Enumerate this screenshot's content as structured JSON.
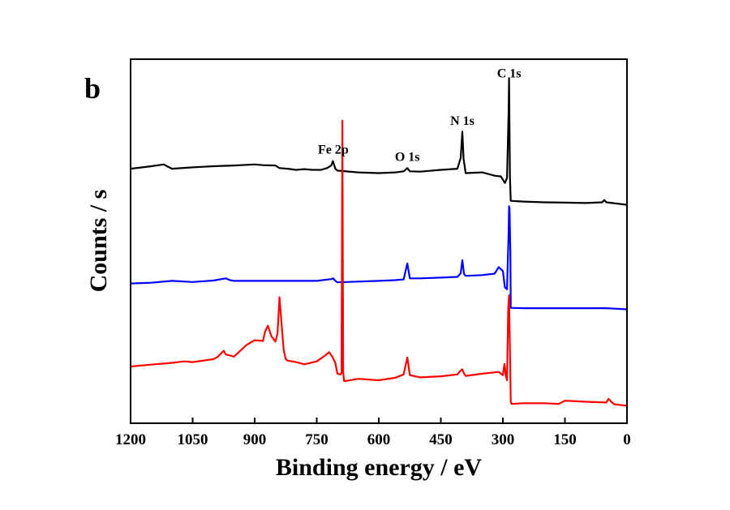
{
  "panel_label": "b",
  "chart_data": {
    "type": "line",
    "xlabel": "Binding energy / eV",
    "ylabel": "Counts / s",
    "xlim": [
      1200,
      0
    ],
    "ylim": [
      0,
      100
    ],
    "x_reversed": true,
    "y_ticks_shown": false,
    "grid": false,
    "x_ticks": [
      1200,
      1050,
      900,
      750,
      600,
      450,
      300,
      150,
      0
    ],
    "x_tick_labels": [
      "1200",
      "1050",
      "900",
      "750",
      "600",
      "450",
      "300",
      "150",
      "0"
    ],
    "annotations": [
      {
        "text": "C 1s",
        "x": 285,
        "y": 95
      },
      {
        "text": "N 1s",
        "x": 398,
        "y": 82
      },
      {
        "text": "O 1s",
        "x": 531,
        "y": 72
      },
      {
        "text": "Fe 2p",
        "x": 710,
        "y": 74
      }
    ],
    "series": [
      {
        "color": "#000000",
        "x": [
          1200,
          1150,
          1120,
          1110,
          1100,
          1050,
          1000,
          950,
          900,
          880,
          850,
          840,
          820,
          800,
          780,
          760,
          740,
          725,
          715,
          711,
          705,
          700,
          650,
          600,
          560,
          540,
          531,
          525,
          500,
          450,
          410,
          402,
          398,
          395,
          390,
          350,
          320,
          305,
          295,
          290,
          286,
          285,
          283,
          281,
          250,
          200,
          150,
          100,
          60,
          55,
          50,
          0
        ],
        "y": [
          69.9,
          70.6,
          71.1,
          70.5,
          69.9,
          70.3,
          70.6,
          70.8,
          71.1,
          70.9,
          70.8,
          70.1,
          69.9,
          69.6,
          69.8,
          69.6,
          69.6,
          70.1,
          70.8,
          72.0,
          69.9,
          69.4,
          68.9,
          68.7,
          68.9,
          69.2,
          70.1,
          69.2,
          69.1,
          69.6,
          69.9,
          72.9,
          80.1,
          72.7,
          68.7,
          68.9,
          68.0,
          67.8,
          66.0,
          67.4,
          86.0,
          94.8,
          67.6,
          61.1,
          60.9,
          60.7,
          60.6,
          60.5,
          60.7,
          61.3,
          60.7,
          60.0
        ]
      },
      {
        "color": "#0000ff",
        "x": [
          1200,
          1150,
          1100,
          1050,
          1000,
          970,
          960,
          950,
          900,
          850,
          800,
          750,
          715,
          710,
          705,
          700,
          650,
          600,
          560,
          540,
          531,
          525,
          500,
          450,
          410,
          402,
          398,
          394,
          390,
          350,
          320,
          310,
          300,
          295,
          290,
          286,
          285,
          284,
          282,
          281,
          250,
          200,
          150,
          100,
          50,
          0
        ],
        "y": [
          38.4,
          38.6,
          39.1,
          38.8,
          39.2,
          39.8,
          39.3,
          39.1,
          39.1,
          39.1,
          39.1,
          39.1,
          39.6,
          39.8,
          39.1,
          38.7,
          38.9,
          39.1,
          39.3,
          39.5,
          43.9,
          39.8,
          39.8,
          40.0,
          40.2,
          41.2,
          44.8,
          41.0,
          40.5,
          40.7,
          41.1,
          42.9,
          41.8,
          37.3,
          36.8,
          52.9,
          59.6,
          58.9,
          47.0,
          31.7,
          31.6,
          31.6,
          31.6,
          31.6,
          31.6,
          31.3
        ]
      },
      {
        "color": "#ff0000",
        "x": [
          1200,
          1150,
          1100,
          1070,
          1050,
          1000,
          990,
          975,
          970,
          950,
          920,
          900,
          880,
          875,
          868,
          860,
          850,
          845,
          840,
          838,
          830,
          825,
          820,
          800,
          780,
          750,
          730,
          720,
          712,
          705,
          700,
          692,
          690,
          688,
          686,
          684,
          680,
          650,
          600,
          560,
          540,
          531,
          525,
          500,
          450,
          410,
          402,
          398,
          394,
          390,
          350,
          310,
          305,
          300,
          296,
          293,
          290,
          287,
          285,
          283,
          281,
          279,
          250,
          200,
          165,
          150,
          100,
          50,
          45,
          35,
          30,
          0
        ],
        "y": [
          15.6,
          16.1,
          16.6,
          17.0,
          16.8,
          17.6,
          18.2,
          19.9,
          18.9,
          18.3,
          21.5,
          22.8,
          22.6,
          25.2,
          26.8,
          24.0,
          22.4,
          24.6,
          34.6,
          31.6,
          20.2,
          17.6,
          17.2,
          16.8,
          16.2,
          17.0,
          18.6,
          19.5,
          18.2,
          16.6,
          13.6,
          13.4,
          13.9,
          83.1,
          14.1,
          11.6,
          11.6,
          12.2,
          11.8,
          12.5,
          13.4,
          18.1,
          13.2,
          12.6,
          12.9,
          13.4,
          14.5,
          14.8,
          13.6,
          13.0,
          13.6,
          14.1,
          13.6,
          13.2,
          16.3,
          13.0,
          11.8,
          31.7,
          35.1,
          20.0,
          5.9,
          5.3,
          5.5,
          5.5,
          5.3,
          6.2,
          5.9,
          5.7,
          6.7,
          5.6,
          5.2,
          4.8
        ]
      }
    ]
  }
}
